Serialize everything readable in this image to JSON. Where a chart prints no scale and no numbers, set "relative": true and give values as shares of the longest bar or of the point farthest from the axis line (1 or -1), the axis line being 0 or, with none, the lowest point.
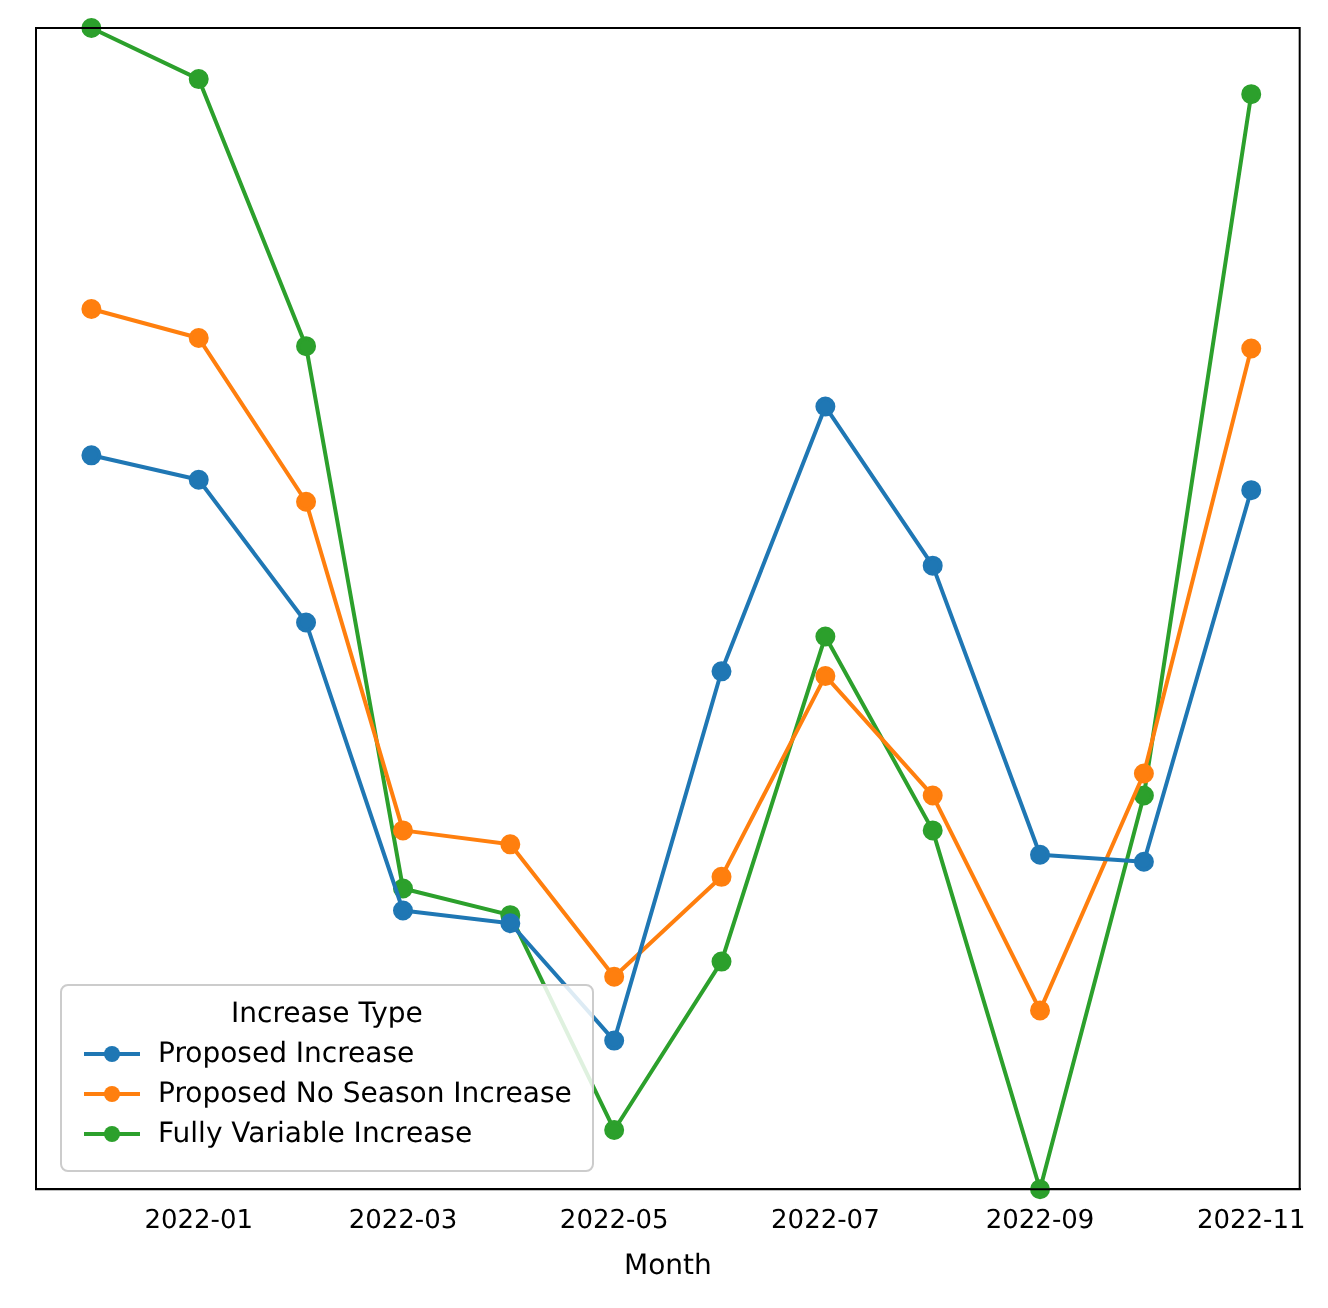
{
  "chart_data": {
    "type": "line",
    "xlabel": "Month",
    "legend_title": "Increase Type",
    "relative": true,
    "x": [
      "2021-12",
      "2022-01",
      "2022-02",
      "2022-03",
      "2022-04",
      "2022-05",
      "2022-06",
      "2022-07",
      "2022-08",
      "2022-09",
      "2022-10",
      "2022-11"
    ],
    "xlim": [
      "2021-11-15",
      "2022-11-15"
    ],
    "xticks": [
      "2022-01",
      "2022-03",
      "2022-05",
      "2022-07",
      "2022-09",
      "2022-11"
    ],
    "series": [
      {
        "name": "Proposed Increase",
        "color": "#1f77b4",
        "values": [
          0.632,
          0.611,
          0.488,
          0.24,
          0.229,
          0.128,
          0.446,
          0.674,
          0.537,
          0.288,
          0.282,
          0.602
        ]
      },
      {
        "name": "Proposed No Season Increase",
        "color": "#ff7f0e",
        "values": [
          0.758,
          0.733,
          0.592,
          0.309,
          0.297,
          0.183,
          0.269,
          0.442,
          0.339,
          0.154,
          0.358,
          0.724
        ]
      },
      {
        "name": "Fully Variable Increase",
        "color": "#2ca02c",
        "values": [
          1.0,
          0.956,
          0.726,
          0.259,
          0.236,
          0.051,
          0.196,
          0.476,
          0.309,
          0.0,
          0.339,
          0.943
        ]
      }
    ],
    "marker": "circle",
    "line_style": "solid",
    "grid": false,
    "legend": "bottom left"
  }
}
